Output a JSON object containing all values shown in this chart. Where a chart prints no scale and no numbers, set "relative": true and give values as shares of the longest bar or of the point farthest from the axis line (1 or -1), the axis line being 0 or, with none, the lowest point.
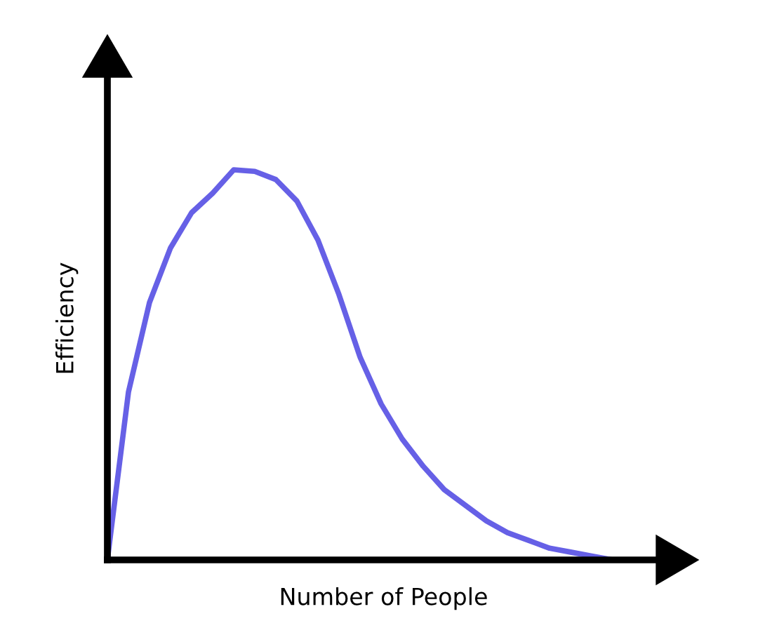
{
  "chart_data": {
    "type": "line",
    "relative": true,
    "xlabel": "Number of People",
    "ylabel": "Efficiency",
    "categories": [
      null,
      null,
      null,
      null,
      null,
      null,
      null,
      null,
      null,
      null,
      null,
      null,
      null,
      null,
      null,
      null,
      null,
      null,
      null,
      null,
      null,
      null,
      null,
      null,
      null
    ],
    "series": [
      {
        "color": "#6660e6",
        "values": [
          0,
          0.43,
          0.66,
          0.8,
          0.89,
          0.94,
          1.0,
          0.996,
          0.975,
          0.92,
          0.82,
          0.68,
          0.52,
          0.4,
          0.31,
          0.24,
          0.18,
          0.14,
          0.1,
          0.07,
          0.05,
          0.03,
          0.02,
          0.01,
          0.0
        ]
      }
    ],
    "marker": "none",
    "line_style": "solid"
  }
}
